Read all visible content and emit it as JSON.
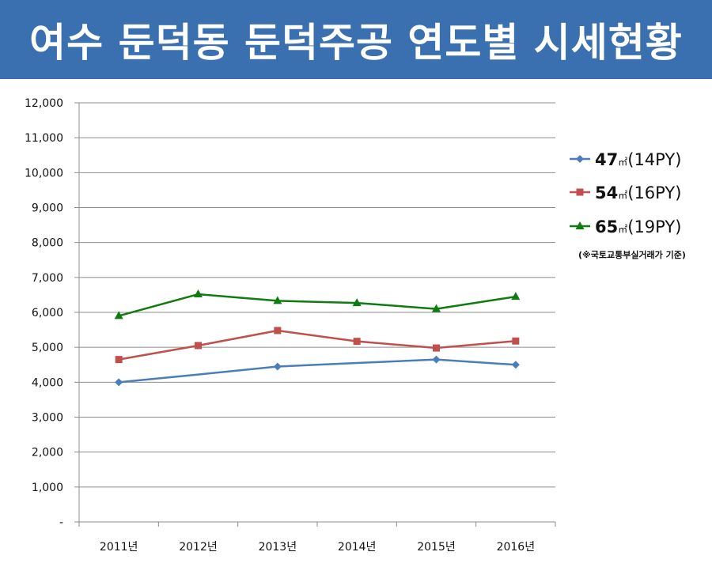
{
  "chart_data": {
    "type": "line",
    "title": "여수 둔덕동 둔덕주공 연도별 시세현황",
    "categories": [
      "2011년",
      "2012년",
      "2013년",
      "2014년",
      "2015년",
      "2016년"
    ],
    "ylim": [
      0,
      12000
    ],
    "yticks": [
      "-",
      "1,000",
      "2,000",
      "3,000",
      "4,000",
      "5,000",
      "6,000",
      "7,000",
      "8,000",
      "9,000",
      "10,000",
      "11,000",
      "12,000"
    ],
    "grid": true,
    "legend_position": "right",
    "note": "(※국토교통부실거래가 기준)",
    "series": [
      {
        "name": "47㎡(14PY)",
        "name_main": "47",
        "name_unit": "㎡",
        "name_py": "(14PY)",
        "color": "#4a7ebb",
        "marker": "diamond",
        "values": [
          4000,
          null,
          4450,
          null,
          4650,
          4500
        ],
        "line_points": [
          4000,
          4220,
          4450,
          4550,
          4650,
          4500
        ]
      },
      {
        "name": "54㎡(16PY)",
        "name_main": "54",
        "name_unit": "㎡",
        "name_py": "(16PY)",
        "color": "#c0504d",
        "marker": "square",
        "values": [
          4650,
          5050,
          5480,
          5170,
          4980,
          5180
        ]
      },
      {
        "name": "65㎡(19PY)",
        "name_main": "65",
        "name_unit": "㎡",
        "name_py": "(19PY)",
        "color": "#0f7c0f",
        "marker": "triangle",
        "values": [
          5900,
          6520,
          6330,
          6270,
          6100,
          6450
        ]
      }
    ]
  }
}
